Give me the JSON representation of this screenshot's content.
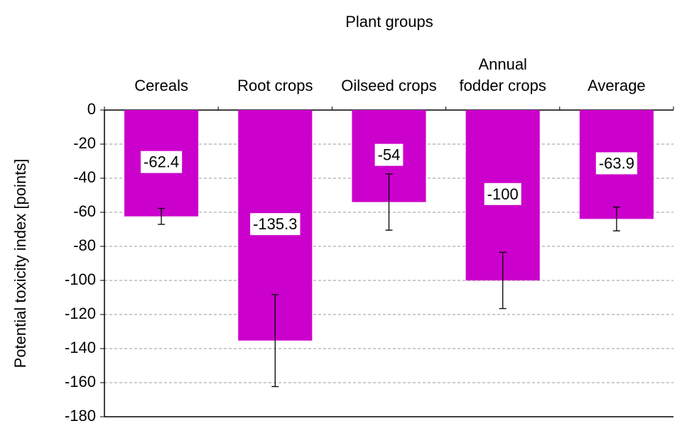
{
  "chart_data": {
    "type": "bar",
    "x_label": "Plant groups",
    "y_label": "Potential toxicity index [points]",
    "categories": [
      "Cereals",
      "Root crops",
      "Oilseed crops",
      "Annual fodder crops",
      "Average"
    ],
    "values": [
      -62.4,
      -135.3,
      -54,
      -100,
      -63.9
    ],
    "errors": [
      4.7,
      27,
      16.5,
      16.5,
      7
    ],
    "color": "#cc00cc",
    "ylim": [
      -180,
      0
    ],
    "yticks": [
      -180,
      -160,
      -140,
      -120,
      -100,
      -80,
      -60,
      -40,
      -20,
      0
    ],
    "grid": true
  }
}
